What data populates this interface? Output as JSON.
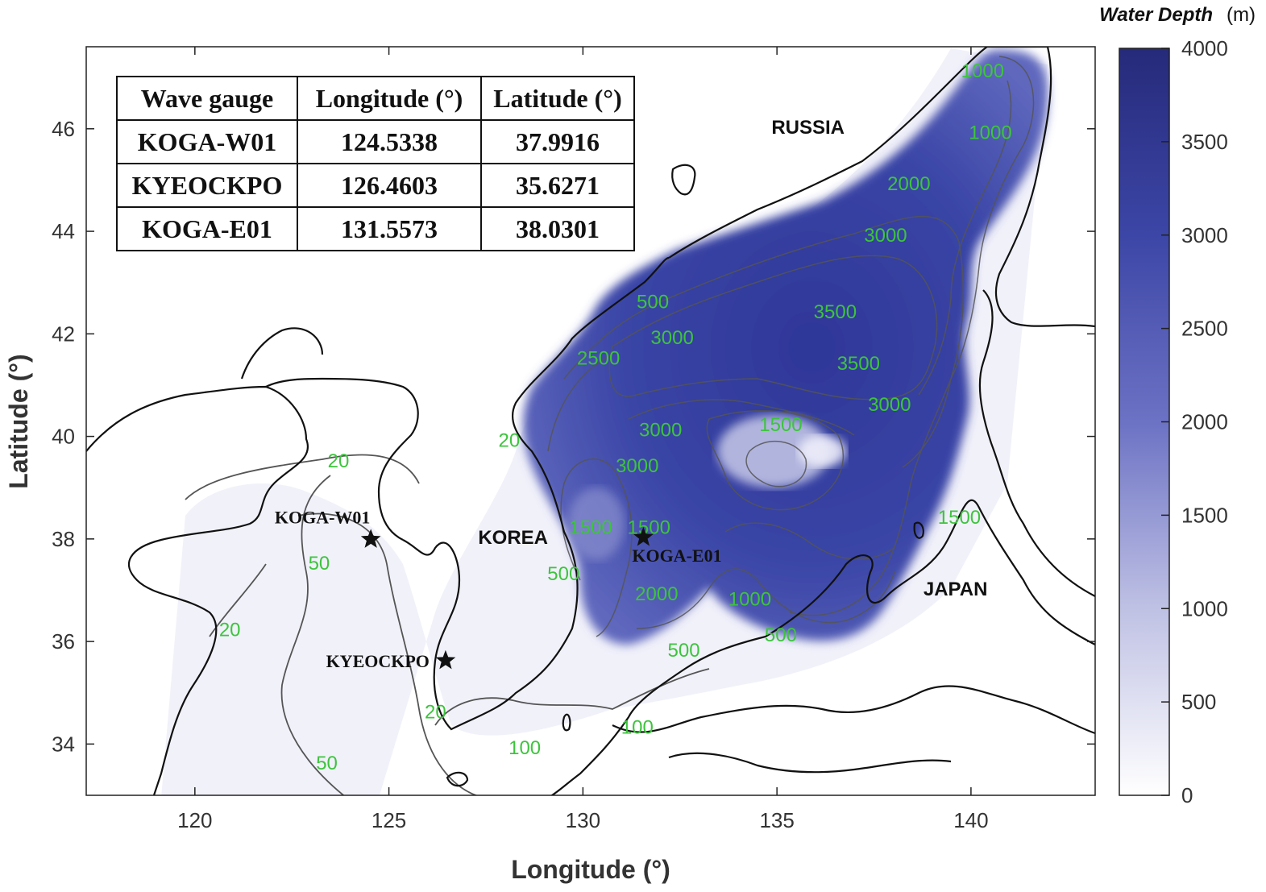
{
  "figure": {
    "x_axis_title": "Longitude (°)",
    "y_axis_title": "Latitude (°)",
    "x_ticks": [
      "120",
      "125",
      "130",
      "135",
      "140"
    ],
    "y_ticks": [
      "34",
      "36",
      "38",
      "40",
      "42",
      "44",
      "46"
    ],
    "xlim": [
      117.2,
      143.2
    ],
    "ylim": [
      33.0,
      47.6
    ]
  },
  "colorbar": {
    "title": "Water Depth",
    "unit": "(m)",
    "ticks": [
      "0",
      "500",
      "1000",
      "1500",
      "2000",
      "2500",
      "3000",
      "3500",
      "4000"
    ],
    "range": [
      0,
      4000
    ],
    "color_low": "#ffffff",
    "color_high": "#262a7a"
  },
  "country_labels": [
    {
      "text": "RUSSIA",
      "lon": 135.8,
      "lat": 45.9
    },
    {
      "text": "KOREA",
      "lon": 128.2,
      "lat": 37.9
    },
    {
      "text": "JAPAN",
      "lon": 139.6,
      "lat": 36.9
    }
  ],
  "gauges": [
    {
      "name": "KOGA-W01",
      "lon": 124.5338,
      "lat": 37.9916
    },
    {
      "name": "KYEOCKPO",
      "lon": 126.4603,
      "lat": 35.6271
    },
    {
      "name": "KOGA-E01",
      "lon": 131.5573,
      "lat": 38.0301
    }
  ],
  "gauge_table": {
    "headers": [
      "Wave gauge",
      "Longitude (°)",
      "Latitude (°)"
    ],
    "rows": [
      [
        "KOGA-W01",
        "124.5338",
        "37.9916"
      ],
      [
        "KYEOCKPO",
        "126.4603",
        "35.6271"
      ],
      [
        "KOGA-E01",
        "131.5573",
        "38.0301"
      ]
    ]
  },
  "contour_labels": [
    {
      "text": "1000",
      "lon": 140.3,
      "lat": 47.0
    },
    {
      "text": "1000",
      "lon": 140.5,
      "lat": 45.8
    },
    {
      "text": "2000",
      "lon": 138.4,
      "lat": 44.8
    },
    {
      "text": "3000",
      "lon": 137.8,
      "lat": 43.8
    },
    {
      "text": "500",
      "lon": 131.8,
      "lat": 42.5
    },
    {
      "text": "3000",
      "lon": 132.3,
      "lat": 41.8
    },
    {
      "text": "3500",
      "lon": 136.5,
      "lat": 42.3
    },
    {
      "text": "2500",
      "lon": 130.4,
      "lat": 41.4
    },
    {
      "text": "3500",
      "lon": 137.1,
      "lat": 41.3
    },
    {
      "text": "3000",
      "lon": 137.9,
      "lat": 40.5
    },
    {
      "text": "3000",
      "lon": 132.0,
      "lat": 40.0
    },
    {
      "text": "1500",
      "lon": 135.1,
      "lat": 40.1
    },
    {
      "text": "20",
      "lon": 128.1,
      "lat": 39.8
    },
    {
      "text": "3000",
      "lon": 131.4,
      "lat": 39.3
    },
    {
      "text": "20",
      "lon": 123.7,
      "lat": 39.4
    },
    {
      "text": "1500",
      "lon": 130.2,
      "lat": 38.1
    },
    {
      "text": "1500",
      "lon": 131.7,
      "lat": 38.1
    },
    {
      "text": "1500",
      "lon": 139.7,
      "lat": 38.3
    },
    {
      "text": "50",
      "lon": 123.2,
      "lat": 37.4
    },
    {
      "text": "500",
      "lon": 129.5,
      "lat": 37.2
    },
    {
      "text": "2000",
      "lon": 131.9,
      "lat": 36.8
    },
    {
      "text": "1000",
      "lon": 134.3,
      "lat": 36.7
    },
    {
      "text": "20",
      "lon": 120.9,
      "lat": 36.1
    },
    {
      "text": "500",
      "lon": 132.6,
      "lat": 35.7
    },
    {
      "text": "500",
      "lon": 135.1,
      "lat": 36.0
    },
    {
      "text": "20",
      "lon": 126.2,
      "lat": 34.5
    },
    {
      "text": "100",
      "lon": 131.4,
      "lat": 34.2
    },
    {
      "text": "100",
      "lon": 128.5,
      "lat": 33.8
    },
    {
      "text": "50",
      "lon": 123.4,
      "lat": 33.5
    }
  ]
}
